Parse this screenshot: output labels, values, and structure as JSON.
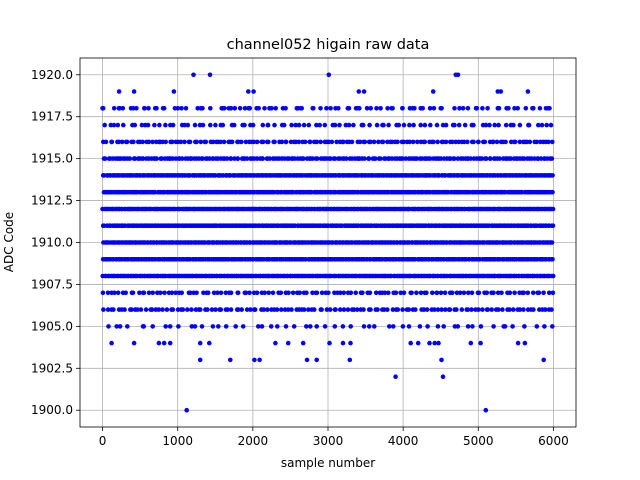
{
  "chart_data": {
    "type": "scatter",
    "title": "channel052 higain raw data",
    "xlabel": "sample number",
    "ylabel": "ADC Code",
    "xlim": [
      -300,
      6300
    ],
    "ylim": [
      1899,
      1921
    ],
    "xticks": [
      0,
      1000,
      2000,
      3000,
      4000,
      5000,
      6000
    ],
    "xtick_labels": [
      "0",
      "1000",
      "2000",
      "3000",
      "4000",
      "5000",
      "6000"
    ],
    "yticks": [
      1900.0,
      1902.5,
      1905.0,
      1907.5,
      1910.0,
      1912.5,
      1915.0,
      1917.5,
      1920.0
    ],
    "ytick_labels": [
      "1900.0",
      "1902.5",
      "1905.0",
      "1907.5",
      "1910.0",
      "1912.5",
      "1915.0",
      "1917.5",
      "1920.0"
    ],
    "grid": true,
    "marker_color": "#0000ff",
    "sample_count": 6000,
    "dense_levels": [
      1906,
      1907,
      1908,
      1909,
      1910,
      1911,
      1912,
      1913,
      1914,
      1915,
      1916,
      1917
    ],
    "level_point_counts": {
      "1905": 55,
      "1906": 130,
      "1907": 120,
      "1908": 300,
      "1909": 300,
      "1910": 300,
      "1911": 300,
      "1912": 300,
      "1913": 300,
      "1914": 300,
      "1915": 200,
      "1916": 150,
      "1917": 90,
      "1918": 60
    },
    "sparse_points": [
      {
        "x": 1120,
        "y": 1900
      },
      {
        "x": 5100,
        "y": 1900
      },
      {
        "x": 3900,
        "y": 1902
      },
      {
        "x": 4530,
        "y": 1902
      },
      {
        "x": 1300,
        "y": 1903
      },
      {
        "x": 1700,
        "y": 1903
      },
      {
        "x": 2020,
        "y": 1903
      },
      {
        "x": 2090,
        "y": 1903
      },
      {
        "x": 2720,
        "y": 1903
      },
      {
        "x": 2850,
        "y": 1903
      },
      {
        "x": 3290,
        "y": 1903
      },
      {
        "x": 4510,
        "y": 1903
      },
      {
        "x": 5870,
        "y": 1903
      },
      {
        "x": 120,
        "y": 1904
      },
      {
        "x": 420,
        "y": 1904
      },
      {
        "x": 750,
        "y": 1904
      },
      {
        "x": 820,
        "y": 1904
      },
      {
        "x": 900,
        "y": 1904
      },
      {
        "x": 1300,
        "y": 1904
      },
      {
        "x": 1420,
        "y": 1904
      },
      {
        "x": 2300,
        "y": 1904
      },
      {
        "x": 2470,
        "y": 1904
      },
      {
        "x": 2670,
        "y": 1904
      },
      {
        "x": 3020,
        "y": 1904
      },
      {
        "x": 3200,
        "y": 1904
      },
      {
        "x": 3300,
        "y": 1904
      },
      {
        "x": 4100,
        "y": 1904
      },
      {
        "x": 4200,
        "y": 1904
      },
      {
        "x": 4350,
        "y": 1904
      },
      {
        "x": 4420,
        "y": 1904
      },
      {
        "x": 4470,
        "y": 1904
      },
      {
        "x": 4900,
        "y": 1904
      },
      {
        "x": 5030,
        "y": 1904
      },
      {
        "x": 5530,
        "y": 1904
      },
      {
        "x": 5620,
        "y": 1904
      },
      {
        "x": 0,
        "y": 1918
      },
      {
        "x": 230,
        "y": 1918
      },
      {
        "x": 270,
        "y": 1918
      },
      {
        "x": 450,
        "y": 1918
      },
      {
        "x": 560,
        "y": 1918
      },
      {
        "x": 700,
        "y": 1918
      },
      {
        "x": 820,
        "y": 1918
      },
      {
        "x": 1050,
        "y": 1918
      },
      {
        "x": 1330,
        "y": 1918
      },
      {
        "x": 1600,
        "y": 1918
      },
      {
        "x": 1680,
        "y": 1918
      },
      {
        "x": 1760,
        "y": 1918
      },
      {
        "x": 1830,
        "y": 1918
      },
      {
        "x": 1960,
        "y": 1918
      },
      {
        "x": 2050,
        "y": 1918
      },
      {
        "x": 2220,
        "y": 1918
      },
      {
        "x": 2400,
        "y": 1918
      },
      {
        "x": 2600,
        "y": 1918
      },
      {
        "x": 2650,
        "y": 1918
      },
      {
        "x": 2900,
        "y": 1918
      },
      {
        "x": 3100,
        "y": 1918
      },
      {
        "x": 3280,
        "y": 1918
      },
      {
        "x": 3400,
        "y": 1918
      },
      {
        "x": 3520,
        "y": 1918
      },
      {
        "x": 3700,
        "y": 1918
      },
      {
        "x": 3860,
        "y": 1918
      },
      {
        "x": 3990,
        "y": 1918
      },
      {
        "x": 4150,
        "y": 1918
      },
      {
        "x": 4260,
        "y": 1918
      },
      {
        "x": 4500,
        "y": 1918
      },
      {
        "x": 4750,
        "y": 1918
      },
      {
        "x": 4980,
        "y": 1918
      },
      {
        "x": 5260,
        "y": 1918
      },
      {
        "x": 5400,
        "y": 1918
      },
      {
        "x": 5720,
        "y": 1918
      },
      {
        "x": 5820,
        "y": 1918
      },
      {
        "x": 5930,
        "y": 1918
      },
      {
        "x": 220,
        "y": 1919
      },
      {
        "x": 420,
        "y": 1919
      },
      {
        "x": 950,
        "y": 1919
      },
      {
        "x": 1940,
        "y": 1919
      },
      {
        "x": 2010,
        "y": 1919
      },
      {
        "x": 3410,
        "y": 1919
      },
      {
        "x": 3480,
        "y": 1919
      },
      {
        "x": 4400,
        "y": 1919
      },
      {
        "x": 5260,
        "y": 1919
      },
      {
        "x": 5300,
        "y": 1919
      },
      {
        "x": 5660,
        "y": 1919
      },
      {
        "x": 1210,
        "y": 1920
      },
      {
        "x": 1430,
        "y": 1920
      },
      {
        "x": 3010,
        "y": 1920
      },
      {
        "x": 4700,
        "y": 1920
      },
      {
        "x": 4730,
        "y": 1920
      }
    ]
  }
}
